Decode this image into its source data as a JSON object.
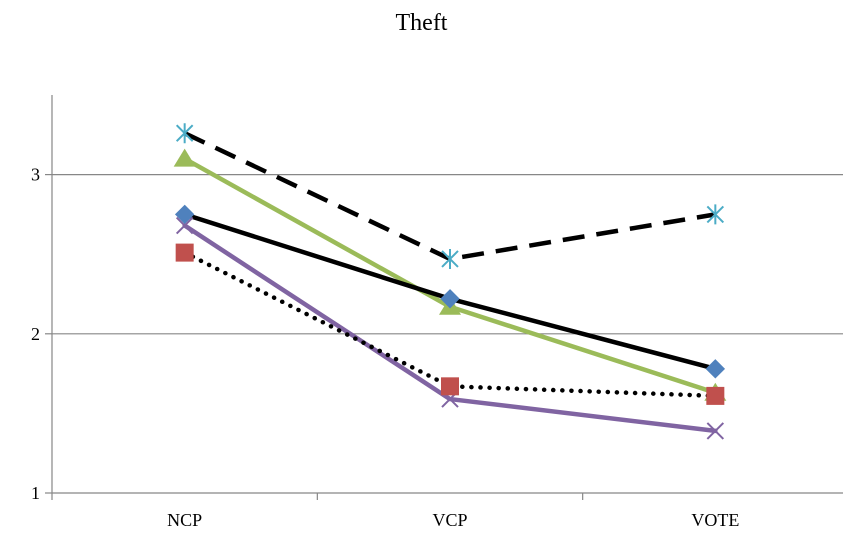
{
  "chart_data": {
    "type": "line",
    "title": "Theft",
    "xlabel": "",
    "ylabel": "",
    "categories": [
      "NCP",
      "VCP",
      "VOTE"
    ],
    "ylim": [
      1,
      3.5
    ],
    "yticks": [
      1,
      2,
      3
    ],
    "grid": true,
    "legend": "none",
    "series": [
      {
        "values": [
          3.26,
          2.47,
          2.75
        ],
        "color": "#000000",
        "dash": "dashed",
        "marker": "asterisk",
        "marker_color": "#4bacc6"
      },
      {
        "values": [
          3.1,
          2.17,
          1.63
        ],
        "color": "#9bbb59",
        "dash": "solid",
        "marker": "triangle",
        "marker_color": "#9bbb59"
      },
      {
        "values": [
          2.75,
          2.22,
          1.78
        ],
        "color": "#000000",
        "dash": "solid",
        "marker": "diamond",
        "marker_color": "#4f81bd"
      },
      {
        "values": [
          2.68,
          1.59,
          1.39
        ],
        "color": "#8064a2",
        "dash": "solid",
        "marker": "x",
        "marker_color": "#8064a2"
      },
      {
        "values": [
          2.51,
          1.67,
          1.61
        ],
        "color": "#000000",
        "dash": "dotted",
        "marker": "square",
        "marker_color": "#c0504d"
      }
    ]
  }
}
